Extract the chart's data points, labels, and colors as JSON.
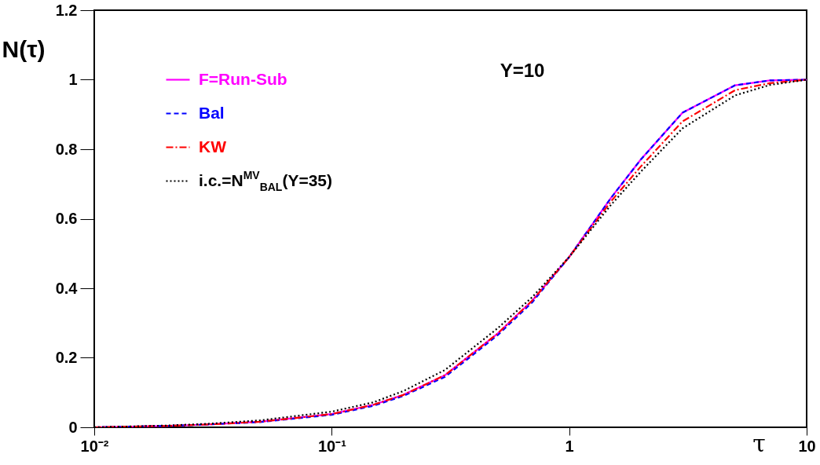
{
  "chart_data": {
    "type": "line",
    "xlabel": "τ",
    "ylabel": "N(τ)",
    "annotations": [
      "Y=10"
    ],
    "log": "x",
    "x": [
      0.01,
      0.02,
      0.03,
      0.05,
      0.1,
      0.15,
      0.2,
      0.3,
      0.5,
      0.7,
      1,
      1.5,
      2,
      3,
      5,
      7,
      10
    ],
    "series": [
      {
        "name": "F=Run-Sub",
        "color": "#ff00ff",
        "line_style": "solid",
        "values": [
          0,
          0.004,
          0.008,
          0.016,
          0.038,
          0.065,
          0.093,
          0.15,
          0.27,
          0.365,
          0.49,
          0.66,
          0.77,
          0.905,
          0.984,
          0.998,
          1
        ]
      },
      {
        "name": "Bal",
        "color": "#0000ff",
        "line_style": "dashed",
        "values": [
          0,
          0.004,
          0.008,
          0.015,
          0.036,
          0.062,
          0.09,
          0.145,
          0.265,
          0.36,
          0.49,
          0.66,
          0.77,
          0.905,
          0.984,
          0.998,
          1
        ]
      },
      {
        "name": "KW",
        "color": "#ff0000",
        "line_style": "dashdot",
        "values": [
          0,
          0.004,
          0.008,
          0.016,
          0.038,
          0.065,
          0.093,
          0.15,
          0.27,
          0.365,
          0.49,
          0.65,
          0.75,
          0.88,
          0.97,
          0.99,
          1
        ]
      },
      {
        "name": "i.c.=N$^{MV}$$_{BAL}$(Y=35)",
        "color": "#000000",
        "line_style": "dotted",
        "values": [
          0,
          0.005,
          0.01,
          0.02,
          0.045,
          0.072,
          0.104,
          0.165,
          0.285,
          0.375,
          0.49,
          0.64,
          0.735,
          0.86,
          0.955,
          0.985,
          1
        ]
      }
    ],
    "xlim": [
      0.01,
      10
    ],
    "ylim": [
      0,
      1.2
    ],
    "xticks": [
      {
        "value": 0.01,
        "label": "10⁻²"
      },
      {
        "value": 0.1,
        "label": "10⁻¹"
      },
      1,
      10
    ],
    "yticks": [
      0,
      0.2,
      0.4,
      0.6,
      0.8,
      1,
      1.2
    ],
    "legend": "top left"
  }
}
